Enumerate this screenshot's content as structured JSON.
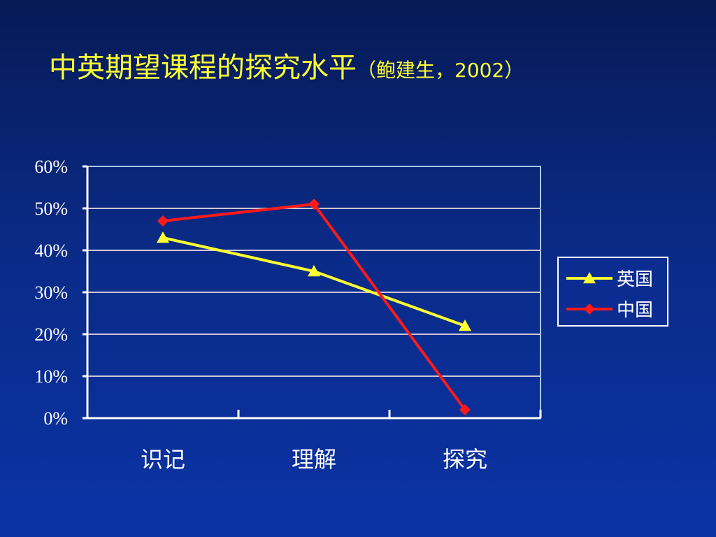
{
  "title": {
    "main": "中英期望课程的探究水平",
    "sub": "（鲍建生，2002）"
  },
  "colors": {
    "title": "#ffff33",
    "uk": "#ffff33",
    "china": "#ff1a1a",
    "grid": "#c8c8d8",
    "plot_border": "#a9c8ff",
    "axis": "#ffffff"
  },
  "chart_data": {
    "type": "line",
    "categories": [
      "识记",
      "理解",
      "探究"
    ],
    "yticks": [
      "0%",
      "10%",
      "20%",
      "30%",
      "40%",
      "50%",
      "60%"
    ],
    "ylim": [
      0,
      60
    ],
    "grid": true,
    "legend_position": "right",
    "series": [
      {
        "name": "英国",
        "marker": "triangle",
        "color": "#ffff33",
        "values": [
          43,
          35,
          22
        ]
      },
      {
        "name": "中国",
        "marker": "diamond",
        "color": "#ff1a1a",
        "values": [
          47,
          51,
          2
        ]
      }
    ]
  }
}
